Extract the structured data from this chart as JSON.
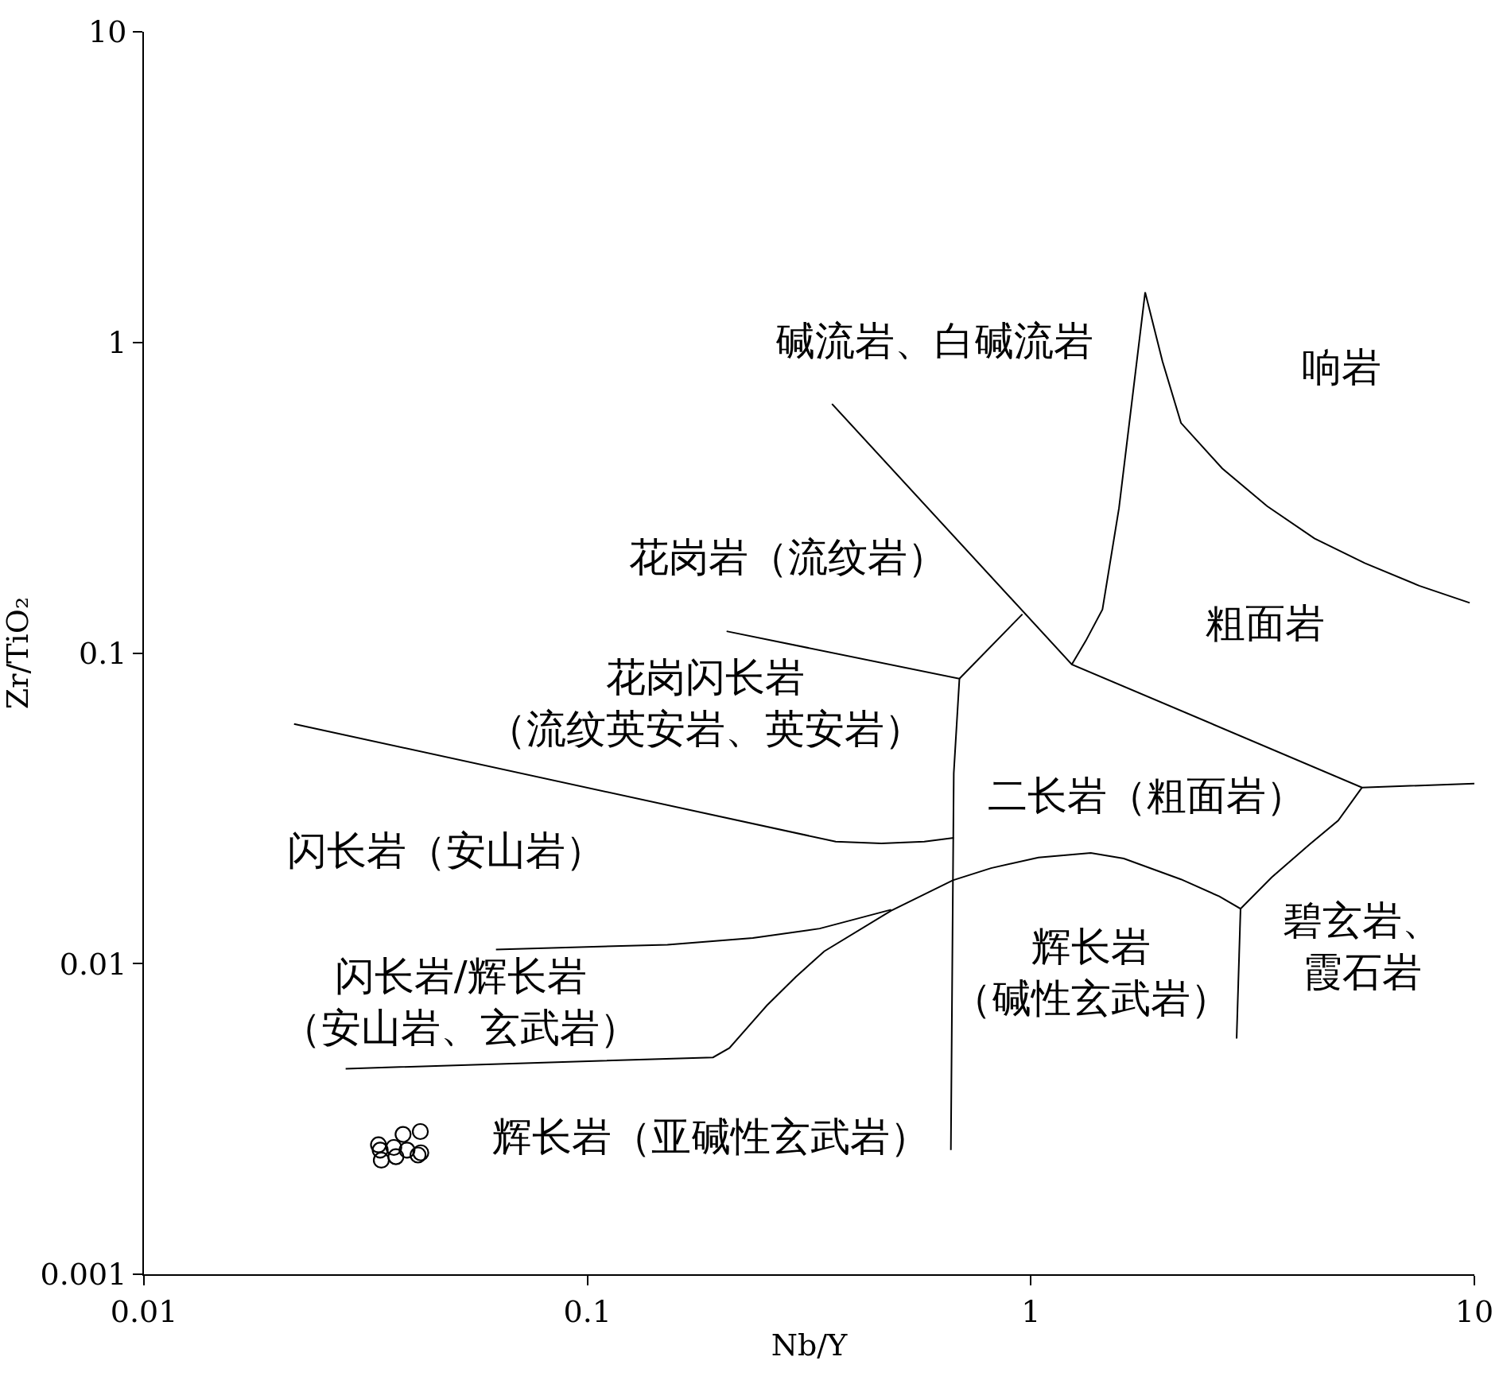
{
  "chart_data": {
    "type": "scatter",
    "xlabel": "Nb/Y",
    "ylabel": "Zr/TiO₂",
    "log": "xy",
    "xlim": [
      0.01,
      10
    ],
    "ylim": [
      0.001,
      10
    ],
    "xticks": [
      0.01,
      0.1,
      1,
      10
    ],
    "yticks": [
      0.001,
      0.01,
      0.1,
      1,
      10
    ],
    "series": [
      {
        "marker": "circle",
        "color": "#000000",
        "x": [
          0.0338,
          0.0341,
          0.0343,
          0.0366,
          0.037,
          0.0384,
          0.0392,
          0.042,
          0.0421,
          0.0415
        ],
        "values": [
          0.00261,
          0.00251,
          0.00233,
          0.00256,
          0.00239,
          0.00282,
          0.00251,
          0.00288,
          0.00246,
          0.00242
        ]
      },
      {
        "type": "line",
        "color": "#000000",
        "x": [
          0.356,
          1.237,
          5.58,
          10
        ],
        "values": [
          0.634,
          0.0919,
          0.0369,
          0.038
        ]
      },
      {
        "type": "line",
        "color": "#000000",
        "x": [
          0.69,
          0.957
        ],
        "values": [
          0.0827,
          0.1334
        ]
      },
      {
        "type": "line",
        "color": "#000000",
        "x": [
          0.206,
          0.69,
          0.67,
          0.66
        ],
        "values": [
          0.1175,
          0.0827,
          0.041,
          0.00251
        ]
      },
      {
        "type": "line",
        "color": "#000000",
        "x": [
          0.0218,
          0.363,
          0.46,
          0.575,
          0.67
        ],
        "values": [
          0.0591,
          0.0247,
          0.0244,
          0.0247,
          0.0254
        ]
      },
      {
        "type": "line",
        "color": "#000000",
        "x": [
          0.0622,
          0.1515,
          0.236,
          0.334,
          0.484
        ],
        "values": [
          0.01111,
          0.01151,
          0.01209,
          0.01297,
          0.01492
        ]
      },
      {
        "type": "line",
        "color": "#000000",
        "x": [
          0.0285,
          0.192,
          0.209,
          0.254,
          0.295,
          0.342,
          0.484,
          0.667,
          0.813,
          1.04,
          1.365,
          1.62,
          2.18,
          2.66,
          2.97,
          3.49,
          4.25,
          4.93,
          5.58
        ],
        "values": [
          0.00459,
          0.00499,
          0.00535,
          0.00734,
          0.00906,
          0.01096,
          0.01481,
          0.01855,
          0.0203,
          0.02196,
          0.02273,
          0.0218,
          0.01868,
          0.01646,
          0.01502,
          0.01895,
          0.0242,
          0.02887,
          0.0369
        ]
      },
      {
        "type": "line",
        "color": "#000000",
        "x": [
          2.97,
          2.91
        ],
        "values": [
          0.01502,
          0.00574
        ]
      },
      {
        "type": "line",
        "color": "#000000",
        "x": [
          1.237,
          1.33,
          1.45,
          1.58,
          1.81,
          1.98,
          2.18,
          2.7,
          3.41,
          4.36,
          5.66,
          7.51,
          9.76
        ],
        "values": [
          0.0919,
          0.1095,
          0.1381,
          0.2928,
          1.45,
          0.869,
          0.5505,
          0.3929,
          0.297,
          0.2338,
          0.1948,
          0.1647,
          0.1451
        ]
      }
    ],
    "annotations": [
      "碱流岩、白碱流岩",
      "响岩",
      "花岗岩（流纹岩）",
      "粗面岩",
      "花岗闪长岩（流纹英安岩、英安岩）",
      "二长岩（粗面岩）",
      "闪长岩（安山岩）",
      "碧玄岩、霞石岩",
      "辉长岩（碱性玄武岩）",
      "闪长岩/辉长岩（安山岩、玄武岩）",
      "辉长岩（亚碱性玄武岩）"
    ]
  }
}
